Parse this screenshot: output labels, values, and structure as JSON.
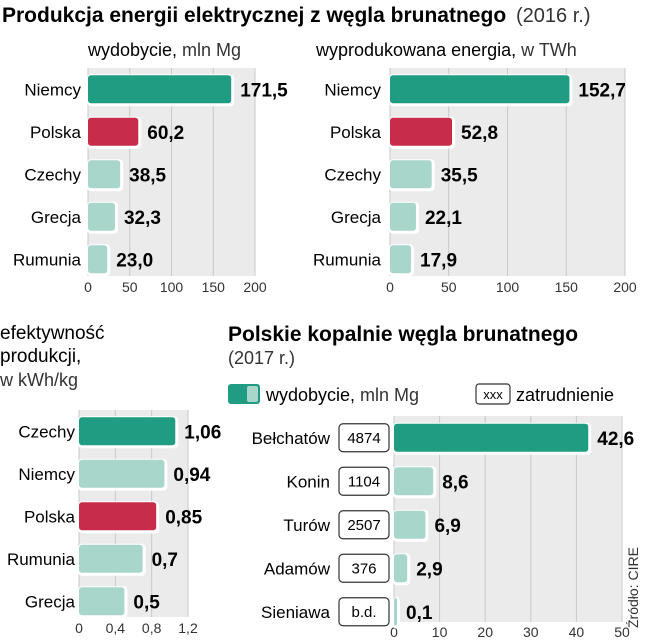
{
  "header": {
    "title": "Produkcja energii elektrycznej z węgla brunatnego",
    "title_year": "(2016 r.)"
  },
  "colors": {
    "teal": "#1f9c81",
    "red": "#c72c4a",
    "light_teal": "#a9d6ca",
    "panel_bg": "#ebebeb"
  },
  "source": "Źródło: CIRE",
  "chart_data": [
    {
      "id": "mining",
      "type": "bar",
      "orientation": "horizontal",
      "title_bold": "wydobycie,",
      "title_unit": "mln Mg",
      "categories": [
        "Niemcy",
        "Polska",
        "Czechy",
        "Grecja",
        "Rumunia"
      ],
      "values": [
        171.5,
        60.2,
        38.5,
        32.3,
        23.0
      ],
      "labels": [
        "171,5",
        "60,2",
        "38,5",
        "32,3",
        "23,0"
      ],
      "highlight": [
        "teal",
        "red",
        "light",
        "light",
        "light"
      ],
      "xlim": [
        0,
        200
      ],
      "ticks": [
        0,
        50,
        100,
        150,
        200
      ],
      "tick_labels": [
        "0",
        "50",
        "100",
        "150",
        "200"
      ],
      "grid": true
    },
    {
      "id": "energy",
      "type": "bar",
      "orientation": "horizontal",
      "title_bold": "wyprodukowana energia,",
      "title_unit": "w TWh",
      "categories": [
        "Niemcy",
        "Polska",
        "Czechy",
        "Grecja",
        "Rumunia"
      ],
      "values": [
        152.7,
        52.8,
        35.5,
        22.1,
        17.9
      ],
      "labels": [
        "152,7",
        "52,8",
        "35,5",
        "22,1",
        "17,9"
      ],
      "highlight": [
        "teal",
        "red",
        "light",
        "light",
        "light"
      ],
      "xlim": [
        0,
        200
      ],
      "ticks": [
        0,
        50,
        100,
        150,
        200
      ],
      "tick_labels": [
        "0",
        "50",
        "100",
        "150",
        "200"
      ],
      "grid": true
    },
    {
      "id": "efficiency",
      "type": "bar",
      "orientation": "horizontal",
      "title_lines": [
        "efektywność",
        "produkcji,"
      ],
      "title_unit": "w kWh/kg",
      "categories": [
        "Czechy",
        "Niemcy",
        "Polska",
        "Rumunia",
        "Grecja"
      ],
      "values": [
        1.06,
        0.94,
        0.85,
        0.7,
        0.5
      ],
      "labels": [
        "1,06",
        "0,94",
        "0,85",
        "0,7",
        "0,5"
      ],
      "highlight": [
        "teal",
        "light",
        "red",
        "light",
        "light"
      ],
      "xlim": [
        0,
        1.2
      ],
      "ticks": [
        0,
        0.4,
        0.8,
        1.2
      ],
      "tick_labels": [
        "0",
        "0,4",
        "0,8",
        "1,2"
      ],
      "grid": true
    },
    {
      "id": "mines",
      "type": "bar",
      "orientation": "horizontal",
      "title": "Polskie kopalnie węgla brunatnego",
      "subtitle": "(2017 r.)",
      "legend": {
        "series_bold": "wydobycie,",
        "series_unit": "mln Mg",
        "employment_box": "xxx",
        "employment_label": "zatrudnienie"
      },
      "categories": [
        "Bełchatów",
        "Konin",
        "Turów",
        "Adamów",
        "Sieniawa"
      ],
      "values": [
        42.6,
        8.6,
        6.9,
        2.9,
        0.1
      ],
      "labels": [
        "42,6",
        "8,6",
        "6,9",
        "2,9",
        "0,1"
      ],
      "employment": [
        "4874",
        "1104",
        "2507",
        "376",
        "b.d."
      ],
      "highlight": [
        "teal",
        "light",
        "light",
        "light",
        "light"
      ],
      "xlim": [
        0,
        50
      ],
      "ticks": [
        0,
        10,
        20,
        30,
        40,
        50
      ],
      "tick_labels": [
        "0",
        "10",
        "20",
        "30",
        "40",
        "50"
      ],
      "grid": true
    }
  ]
}
